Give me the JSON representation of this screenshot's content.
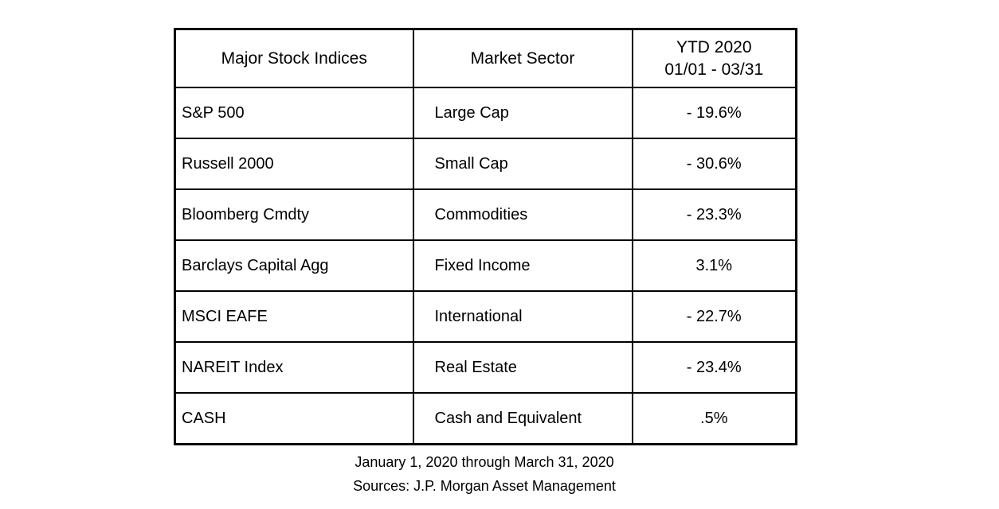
{
  "chart_data": {
    "type": "table",
    "title": "",
    "columns": [
      "Major Stock Indices",
      "Market Sector",
      "YTD 2020 01/01 - 03/31"
    ],
    "header_lines": [
      [
        "Major Stock Indices"
      ],
      [
        "Market Sector"
      ],
      [
        "YTD 2020",
        "01/01 - 03/31"
      ]
    ],
    "rows": [
      [
        "S&P 500",
        "Large Cap",
        "- 19.6%"
      ],
      [
        "Russell 2000",
        "Small Cap",
        "- 30.6%"
      ],
      [
        "Bloomberg Cmdty",
        "Commodities",
        "- 23.3%"
      ],
      [
        "Barclays Capital Agg",
        "Fixed Income",
        "3.1%"
      ],
      [
        "MSCI EAFE",
        "International",
        "- 22.7%"
      ],
      [
        "NAREIT Index",
        "Real Estate",
        "- 23.4%"
      ],
      [
        "CASH",
        "Cash and Equivalent",
        ".5%"
      ]
    ],
    "ytd_numeric": [
      -19.6,
      -30.6,
      -23.3,
      3.1,
      -22.7,
      -23.4,
      0.5
    ],
    "notes": [
      "January 1, 2020 through March 31, 2020",
      "Sources: J.P. Morgan Asset Management"
    ],
    "layout": {
      "grid": true,
      "border_color": "#000000",
      "text_color": "#000000",
      "background": "#ffffff"
    }
  }
}
